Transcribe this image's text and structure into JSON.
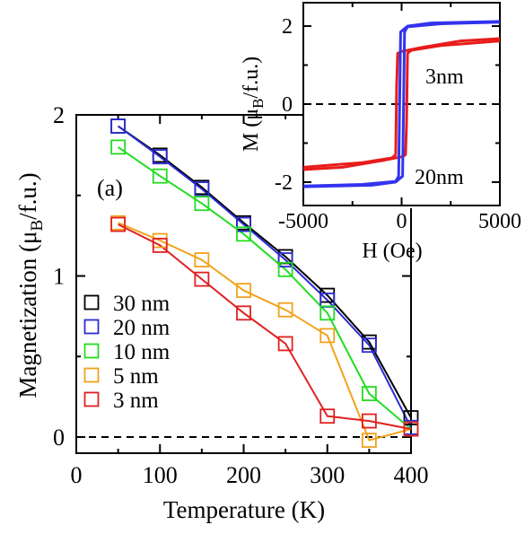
{
  "chart_data": [
    {
      "type": "line",
      "xlabel": "Temperature (K)",
      "ylabel_main": "Magnetization (μ",
      "ylabel_sub": "B",
      "ylabel_tail": "/f.u.)",
      "panel_label": "(a)",
      "xlim": [
        0,
        400
      ],
      "ylim": [
        -0.1,
        2.0
      ],
      "xticks": [
        0,
        100,
        200,
        300,
        400
      ],
      "xtick_labels": [
        "0",
        "100",
        "200",
        "300",
        "400"
      ],
      "yticks": [
        0,
        1,
        2
      ],
      "ytick_labels": [
        "0",
        "1",
        "2"
      ],
      "zero_line": "dashed",
      "legend_position": "lower-left",
      "series": [
        {
          "name": "30 nm",
          "color": "#000000",
          "marker": "open-square",
          "x": [
            50,
            100,
            150,
            200,
            250,
            300,
            350,
            400
          ],
          "y": [
            1.93,
            1.75,
            1.55,
            1.33,
            1.12,
            0.88,
            0.59,
            0.12
          ]
        },
        {
          "name": "20 nm",
          "color": "#2b2bd4",
          "marker": "open-square",
          "x": [
            50,
            100,
            150,
            200,
            250,
            300,
            350,
            400
          ],
          "y": [
            1.93,
            1.74,
            1.54,
            1.32,
            1.1,
            0.85,
            0.57,
            0.06
          ]
        },
        {
          "name": "10 nm",
          "color": "#22dd22",
          "marker": "open-square",
          "x": [
            50,
            100,
            150,
            200,
            250,
            300,
            350,
            400
          ],
          "y": [
            1.8,
            1.62,
            1.45,
            1.26,
            1.04,
            0.77,
            0.27,
            0.05
          ]
        },
        {
          "name": "5 nm",
          "color": "#f2a21c",
          "marker": "open-square",
          "x": [
            50,
            100,
            150,
            200,
            250,
            300,
            350,
            400
          ],
          "y": [
            1.33,
            1.22,
            1.1,
            0.91,
            0.79,
            0.63,
            -0.02,
            0.05
          ]
        },
        {
          "name": "3 nm",
          "color": "#e02020",
          "marker": "open-square",
          "x": [
            50,
            100,
            150,
            200,
            250,
            300,
            350,
            400
          ],
          "y": [
            1.32,
            1.19,
            0.98,
            0.77,
            0.58,
            0.13,
            0.1,
            0.05
          ]
        }
      ]
    },
    {
      "type": "line",
      "xlabel": "H (Oe)",
      "ylabel_main": "M (μ",
      "ylabel_sub": "B",
      "ylabel_tail": "/f.u.)",
      "xlim": [
        -5000,
        5000
      ],
      "ylim": [
        -2.6,
        2.6
      ],
      "xticks": [
        -5000,
        0,
        5000
      ],
      "xtick_labels": [
        "-5000",
        "0",
        "5000"
      ],
      "yticks": [
        -2,
        0,
        2
      ],
      "ytick_labels": [
        "-2",
        "0",
        "2"
      ],
      "zero_line": "dashed",
      "annotations": [
        "3nm",
        "20nm"
      ],
      "series": [
        {
          "name": "3nm",
          "color": "#e81c1c",
          "upper_branch": {
            "x": [
              -5000,
              -2000,
              -500,
              -300,
              -250,
              -200,
              0,
              1000,
              3000,
              5000
            ],
            "y": [
              -1.62,
              -1.5,
              -1.38,
              -1.3,
              0.5,
              1.3,
              1.35,
              1.45,
              1.62,
              1.68
            ]
          },
          "lower_branch": {
            "x": [
              5000,
              2000,
              500,
              300,
              250,
              200,
              0,
              -1000,
              -3000,
              -5000
            ],
            "y": [
              1.62,
              1.5,
              1.38,
              1.3,
              -0.5,
              -1.3,
              -1.35,
              -1.45,
              -1.62,
              -1.68
            ]
          }
        },
        {
          "name": "20nm",
          "color": "#3333ee",
          "upper_branch": {
            "x": [
              -5000,
              -2000,
              -300,
              -150,
              -100,
              -50,
              300,
              1500,
              5000
            ],
            "y": [
              -2.1,
              -2.06,
              -1.98,
              -1.85,
              0.0,
              1.85,
              2.0,
              2.08,
              2.12
            ]
          },
          "lower_branch": {
            "x": [
              5000,
              2000,
              300,
              150,
              100,
              50,
              -300,
              -1500,
              -5000
            ],
            "y": [
              2.1,
              2.06,
              1.98,
              1.85,
              0.0,
              -1.85,
              -2.0,
              -2.08,
              -2.12
            ]
          }
        }
      ]
    }
  ]
}
